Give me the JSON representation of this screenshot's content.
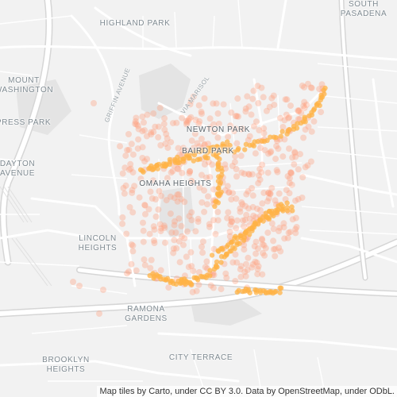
{
  "places": [
    {
      "id": "highland-park",
      "lines": [
        "HIGHLAND PARK"
      ]
    },
    {
      "id": "south-pasadena",
      "lines": [
        "SOUTH",
        "PASADENA"
      ]
    },
    {
      "id": "mount-washington",
      "lines": [
        "MOUNT",
        "WASHINGTON"
      ]
    },
    {
      "id": "cypress-park",
      "lines": [
        "CYPRESS PARK"
      ]
    },
    {
      "id": "dayton-avenue",
      "lines": [
        "DAYTON",
        "AVENUE"
      ]
    },
    {
      "id": "newton-park",
      "lines": [
        "NEWTON PARK"
      ]
    },
    {
      "id": "baird-park",
      "lines": [
        "BAIRD PARK"
      ]
    },
    {
      "id": "omaha-heights",
      "lines": [
        "OMAHA HEIGHTS"
      ]
    },
    {
      "id": "lincoln-heights",
      "lines": [
        "LINCOLN",
        "HEIGHTS"
      ]
    },
    {
      "id": "ramona-gardens",
      "lines": [
        "RAMONA",
        "GARDENS"
      ]
    },
    {
      "id": "city-terrace",
      "lines": [
        "CITY TERRACE"
      ]
    },
    {
      "id": "brooklyn-heights",
      "lines": [
        "BROOKLYN",
        "HEIGHTS"
      ]
    }
  ],
  "streets": [
    {
      "id": "griffin-avenue",
      "label": "GRIFFIN AVENUE"
    },
    {
      "id": "via-marisol",
      "label": "VIA MARISOL"
    }
  ],
  "attribution": "Map tiles by Carto, under CC BY 3.0. Data by OpenStreetMap, under ODbL.",
  "colors": {
    "background": "#f2f2f2",
    "road": "#ffffff",
    "road_casing": "#dcdcdc",
    "park": "#e3e3e3",
    "hotspot": "#ffb347",
    "scatter": "#ff9e7a"
  }
}
